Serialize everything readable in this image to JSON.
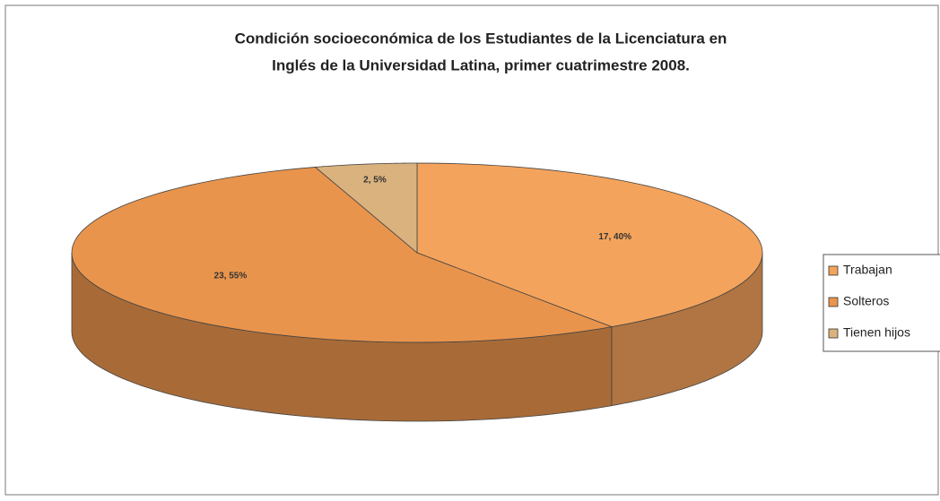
{
  "chart_data": {
    "type": "pie3d",
    "title": [
      "Condición socioeconómica de los Estudiantes de la Licenciatura en",
      "Inglés de la Universidad Latina, primer cuatrimestre 2008."
    ],
    "categories": [
      "Trabajan",
      "Solteros",
      "Tienen hijos"
    ],
    "values": [
      17,
      23,
      2
    ],
    "value_labels": [
      "17, 40%",
      "23, 55%",
      "2, 5%"
    ],
    "colors": [
      "#f4a35c",
      "#e9944c",
      "#d9b27e"
    ],
    "legend": "right"
  }
}
